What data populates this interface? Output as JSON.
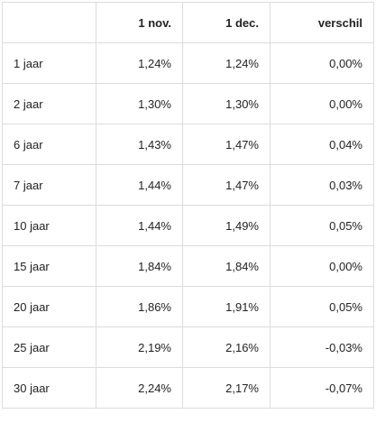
{
  "table": {
    "headers": [
      "",
      "1 nov.",
      "1 dec.",
      "verschil"
    ],
    "rows": [
      {
        "label": "1 jaar",
        "nov": "1,24%",
        "dec": "1,24%",
        "diff": "0,00%"
      },
      {
        "label": "2 jaar",
        "nov": "1,30%",
        "dec": "1,30%",
        "diff": "0,00%"
      },
      {
        "label": "6 jaar",
        "nov": "1,43%",
        "dec": "1,47%",
        "diff": "0,04%"
      },
      {
        "label": "7 jaar",
        "nov": "1,44%",
        "dec": "1,47%",
        "diff": "0,03%"
      },
      {
        "label": "10 jaar",
        "nov": "1,44%",
        "dec": "1,49%",
        "diff": "0,05%"
      },
      {
        "label": "15 jaar",
        "nov": "1,84%",
        "dec": "1,84%",
        "diff": "0,00%"
      },
      {
        "label": "20 jaar",
        "nov": "1,86%",
        "dec": "1,91%",
        "diff": "0,05%"
      },
      {
        "label": "25 jaar",
        "nov": "2,19%",
        "dec": "2,16%",
        "diff": "-0,03%"
      },
      {
        "label": "30 jaar",
        "nov": "2,24%",
        "dec": "2,17%",
        "diff": "-0,07%"
      }
    ]
  }
}
